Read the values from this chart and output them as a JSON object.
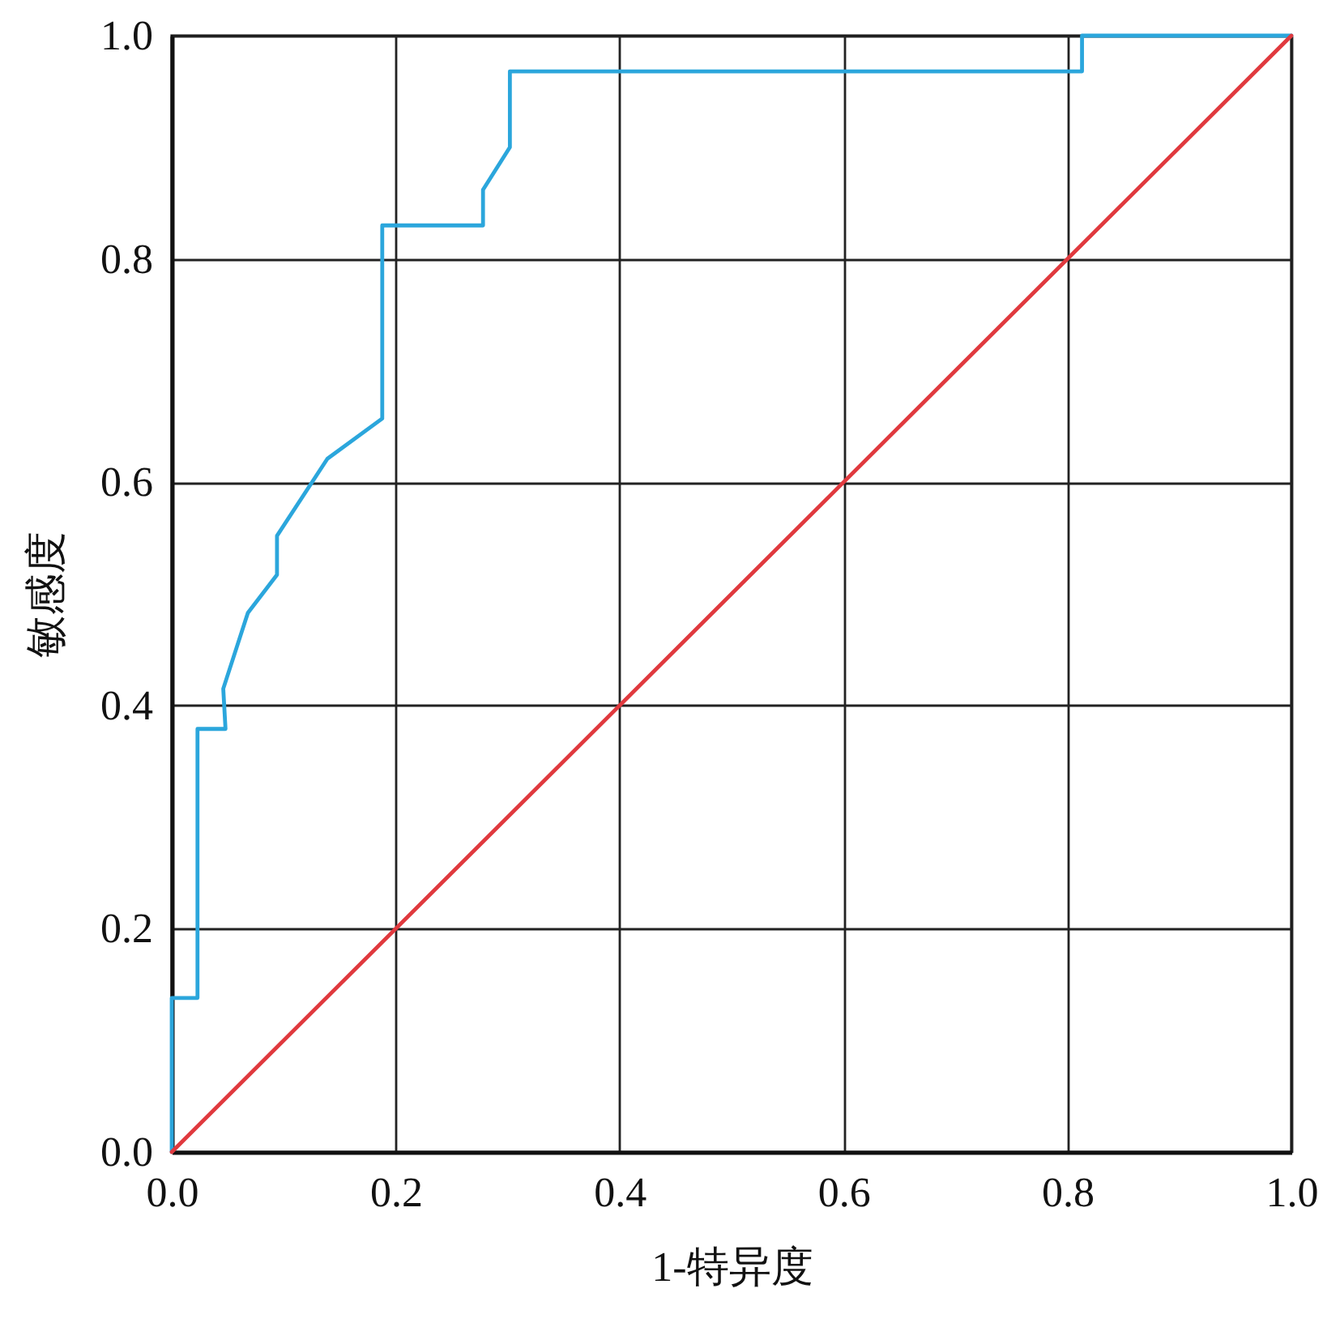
{
  "chart_data": {
    "type": "line",
    "xlabel": "1-特异度",
    "ylabel": "敏感度",
    "xlim": [
      0,
      1
    ],
    "ylim": [
      0,
      1
    ],
    "xticks": [
      {
        "value": 0,
        "label": "0.0"
      },
      0.2,
      0.4,
      0.6,
      0.8,
      {
        "value": 1,
        "label": "1.0"
      }
    ],
    "yticks": [
      {
        "value": 0,
        "label": "0.0"
      },
      0.2,
      0.4,
      0.6,
      0.8,
      {
        "value": 1,
        "label": "1.0"
      }
    ],
    "grid": true,
    "series": [
      {
        "color": "#2ba6dc",
        "x": [
          0,
          0,
          0.023,
          0.023,
          0.048,
          0.046,
          0.068,
          0.094,
          0.094,
          0.139,
          0.188,
          0.188,
          0.278,
          0.278,
          0.302,
          0.302,
          0.813,
          0.813,
          1
        ],
        "values": [
          0,
          0.138,
          0.138,
          0.379,
          0.379,
          0.415,
          0.483,
          0.517,
          0.552,
          0.621,
          0.657,
          0.83,
          0.83,
          0.862,
          0.9,
          0.968,
          0.968,
          1,
          1
        ]
      },
      {
        "color": "#e0393e",
        "x": [
          0,
          1
        ],
        "values": [
          0,
          1
        ]
      }
    ]
  }
}
